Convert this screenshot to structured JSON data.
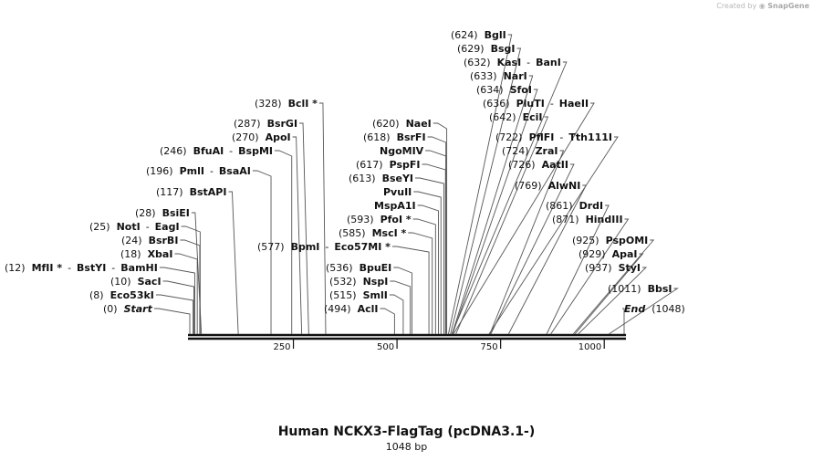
{
  "branding": {
    "prefix": "Created by",
    "name": "SnapGene"
  },
  "map": {
    "title": "Human NCKX3-FlagTag (pcDNA3.1-)",
    "length_label": "1048 bp",
    "length": 1048,
    "ticks": [
      {
        "pos": 250,
        "label": "250"
      },
      {
        "pos": 500,
        "label": "500"
      },
      {
        "pos": 750,
        "label": "750"
      },
      {
        "pos": 1000,
        "label": "1000"
      }
    ],
    "sites": [
      {
        "pos": 0,
        "pos_label": "(0)",
        "names": [
          "Start"
        ],
        "italic": true
      },
      {
        "pos": 8,
        "pos_label": "(8)",
        "names": [
          "Eco53kI"
        ]
      },
      {
        "pos": 10,
        "pos_label": "(10)",
        "names": [
          "SacI"
        ]
      },
      {
        "pos": 12,
        "pos_label": "(12)",
        "names": [
          "MfII *",
          "BstYI",
          "BamHI"
        ]
      },
      {
        "pos": 18,
        "pos_label": "(18)",
        "names": [
          "XbaI"
        ]
      },
      {
        "pos": 24,
        "pos_label": "(24)",
        "names": [
          "BsrBI"
        ]
      },
      {
        "pos": 25,
        "pos_label": "(25)",
        "names": [
          "NotI",
          "EagI"
        ]
      },
      {
        "pos": 28,
        "pos_label": "(28)",
        "names": [
          "BsiEI"
        ]
      },
      {
        "pos": 117,
        "pos_label": "(117)",
        "names": [
          "BstAPI"
        ]
      },
      {
        "pos": 196,
        "pos_label": "(196)",
        "names": [
          "PmlI",
          "BsaAI"
        ]
      },
      {
        "pos": 246,
        "pos_label": "(246)",
        "names": [
          "BfuAI",
          "BspMI"
        ]
      },
      {
        "pos": 270,
        "pos_label": "(270)",
        "names": [
          "ApoI"
        ]
      },
      {
        "pos": 287,
        "pos_label": "(287)",
        "names": [
          "BsrGI"
        ]
      },
      {
        "pos": 328,
        "pos_label": "(328)",
        "names": [
          "BclI *"
        ]
      },
      {
        "pos": 494,
        "pos_label": "(494)",
        "names": [
          "AclI"
        ]
      },
      {
        "pos": 515,
        "pos_label": "(515)",
        "names": [
          "SmlI"
        ]
      },
      {
        "pos": 532,
        "pos_label": "(532)",
        "names": [
          "NspI"
        ]
      },
      {
        "pos": 536,
        "pos_label": "(536)",
        "names": [
          "BpuEI"
        ]
      },
      {
        "pos": 577,
        "pos_label": "(577)",
        "names": [
          "BpmI",
          "Eco57MI *"
        ]
      },
      {
        "pos": 585,
        "pos_label": "(585)",
        "names": [
          "MscI *"
        ]
      },
      {
        "pos": 593,
        "pos_label": "(593)",
        "names": [
          "PfoI *"
        ]
      },
      {
        "pos": 600,
        "pos_label": "",
        "names": [
          "MspA1I"
        ]
      },
      {
        "pos": 606,
        "pos_label": "",
        "names": [
          "PvuII"
        ]
      },
      {
        "pos": 613,
        "pos_label": "(613)",
        "names": [
          "BseYI"
        ]
      },
      {
        "pos": 617,
        "pos_label": "(617)",
        "names": [
          "PspFI"
        ]
      },
      {
        "pos": 618,
        "pos_label": "",
        "names": [
          "NgoMIV"
        ]
      },
      {
        "pos": 618,
        "pos_label": "(618)",
        "names": [
          "BsrFI"
        ]
      },
      {
        "pos": 620,
        "pos_label": "(620)",
        "names": [
          "NaeI"
        ]
      },
      {
        "pos": 624,
        "pos_label": "(624)",
        "names": [
          "BglI"
        ]
      },
      {
        "pos": 629,
        "pos_label": "(629)",
        "names": [
          "BsgI"
        ]
      },
      {
        "pos": 632,
        "pos_label": "(632)",
        "names": [
          "KasI",
          "BanI"
        ]
      },
      {
        "pos": 633,
        "pos_label": "(633)",
        "names": [
          "NarI"
        ]
      },
      {
        "pos": 634,
        "pos_label": "(634)",
        "names": [
          "SfoI"
        ]
      },
      {
        "pos": 636,
        "pos_label": "(636)",
        "names": [
          "PluTI",
          "HaeII"
        ]
      },
      {
        "pos": 642,
        "pos_label": "(642)",
        "names": [
          "EciI"
        ]
      },
      {
        "pos": 722,
        "pos_label": "(722)",
        "names": [
          "PflFI",
          "Tth111I"
        ]
      },
      {
        "pos": 724,
        "pos_label": "(724)",
        "names": [
          "ZraI"
        ]
      },
      {
        "pos": 726,
        "pos_label": "(726)",
        "names": [
          "AatII"
        ]
      },
      {
        "pos": 769,
        "pos_label": "(769)",
        "names": [
          "AlwNI"
        ]
      },
      {
        "pos": 861,
        "pos_label": "(861)",
        "names": [
          "DrdI"
        ]
      },
      {
        "pos": 871,
        "pos_label": "(871)",
        "names": [
          "HindIII"
        ]
      },
      {
        "pos": 925,
        "pos_label": "(925)",
        "names": [
          "PspOMI"
        ]
      },
      {
        "pos": 929,
        "pos_label": "(929)",
        "names": [
          "ApaI"
        ]
      },
      {
        "pos": 937,
        "pos_label": "(937)",
        "names": [
          "StyI"
        ]
      },
      {
        "pos": 1011,
        "pos_label": "(1011)",
        "names": [
          "BbsI"
        ]
      },
      {
        "pos": 1048,
        "pos_label": "(1048)",
        "names": [
          "End"
        ],
        "italic": true
      }
    ]
  }
}
